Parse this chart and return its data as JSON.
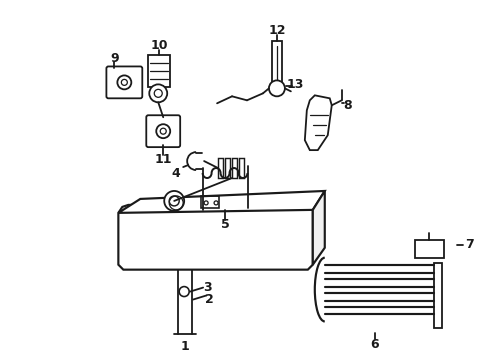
{
  "background_color": "#ffffff",
  "line_color": "#1a1a1a",
  "line_width": 1.3,
  "label_fontsize": 9,
  "figsize": [
    4.9,
    3.6
  ],
  "dpi": 100
}
